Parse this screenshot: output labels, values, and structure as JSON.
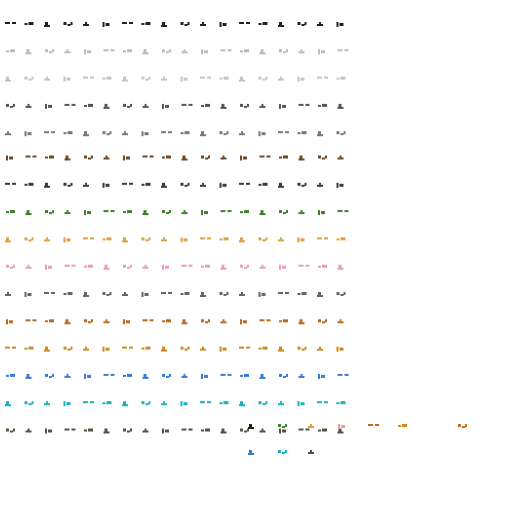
{
  "sprite_sheet": {
    "background_color": "#ffffff",
    "rows": [
      {
        "name": "pale-row-top",
        "color": "#222222",
        "frames": 18
      },
      {
        "name": "pale-row-2",
        "color": "#bbbbbb",
        "frames": 18
      },
      {
        "name": "pale-row-3",
        "color": "#c4c4c4",
        "frames": 18
      },
      {
        "name": "pale-row-4",
        "color": "#555555",
        "frames": 18
      },
      {
        "name": "pale-row-5",
        "color": "#777777",
        "frames": 18
      },
      {
        "name": "brown-row",
        "color": "#6b4a2a",
        "frames": 18
      },
      {
        "name": "dark-row",
        "color": "#3a3a3a",
        "frames": 18
      },
      {
        "name": "green-row",
        "color": "#3f7f2f",
        "frames": 18
      },
      {
        "name": "orange-row",
        "color": "#e0a040",
        "frames": 18
      },
      {
        "name": "pink-row",
        "color": "#e6a0a8",
        "frames": 18
      },
      {
        "name": "grey-red-row",
        "color": "#666666",
        "frames": 18
      },
      {
        "name": "orange-brown-row",
        "color": "#b86a20",
        "frames": 18
      },
      {
        "name": "amber-row",
        "color": "#d08820",
        "frames": 18
      },
      {
        "name": "blue-row",
        "color": "#3a7ad8",
        "frames": 18
      },
      {
        "name": "cyan-row",
        "color": "#1ab0c0",
        "frames": 18
      },
      {
        "name": "grey-brown-row",
        "color": "#5a5040",
        "frames": 18
      }
    ],
    "extra_frames": [
      {
        "name": "mini-black",
        "color": "#222222",
        "col": 8,
        "row": 0
      },
      {
        "name": "mini-green",
        "color": "#3f7f2f",
        "col": 9,
        "row": 0
      },
      {
        "name": "mini-orange",
        "color": "#e0a040",
        "col": 10,
        "row": 0
      },
      {
        "name": "mini-pink",
        "color": "#e6a0a8",
        "col": 11,
        "row": 0
      },
      {
        "name": "mini-brown",
        "color": "#b86a20",
        "col": 12,
        "row": 0
      },
      {
        "name": "mini-orange-2",
        "color": "#d08820",
        "col": 13,
        "row": 0
      },
      {
        "name": "mini-amber",
        "color": "#c07020",
        "col": 15,
        "row": 0
      },
      {
        "name": "mini-blue",
        "color": "#3a7ad8",
        "col": 8,
        "row": 1
      },
      {
        "name": "mini-cyan",
        "color": "#1ab0c0",
        "col": 9,
        "row": 1
      },
      {
        "name": "mini-grey-brown",
        "color": "#5a5040",
        "col": 10,
        "row": 1
      }
    ]
  }
}
